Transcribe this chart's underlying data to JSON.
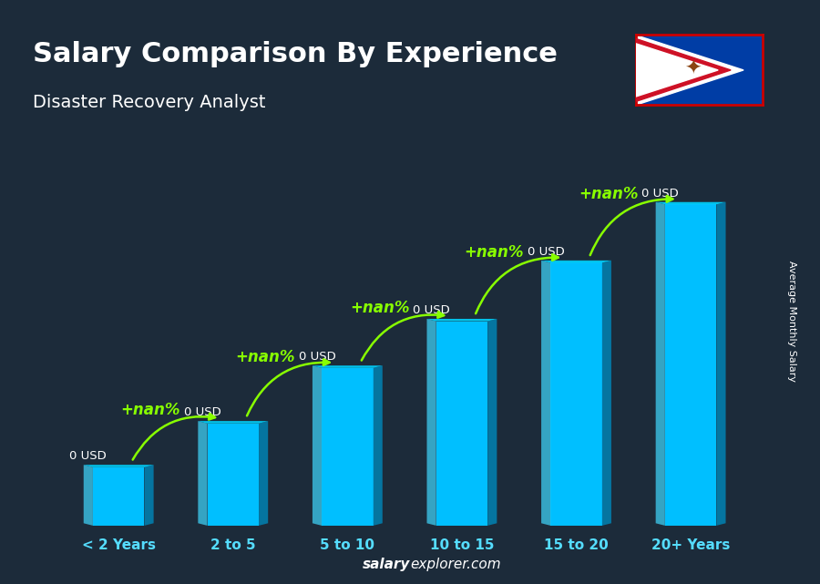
{
  "title": "Salary Comparison By Experience",
  "subtitle": "Disaster Recovery Analyst",
  "ylabel": "Average Monthly Salary",
  "watermark": "salaryexplorer.com",
  "watermark_bold": "salary",
  "categories": [
    "< 2 Years",
    "2 to 5",
    "5 to 10",
    "10 to 15",
    "15 to 20",
    "20+ Years"
  ],
  "heights": [
    1.0,
    1.75,
    2.7,
    3.5,
    4.5,
    5.5
  ],
  "bar_color_face": "#00bfff",
  "bar_color_left": "#40d8ff",
  "bar_color_right": "#0088bb",
  "bar_color_top": "#00d4ff",
  "bar_labels": [
    "0 USD",
    "0 USD",
    "0 USD",
    "0 USD",
    "0 USD",
    "0 USD"
  ],
  "increase_labels": [
    "+nan%",
    "+nan%",
    "+nan%",
    "+nan%",
    "+nan%"
  ],
  "bg_color": "#1c2b3a",
  "title_color": "#ffffff",
  "subtitle_color": "#ffffff",
  "cat_label_color": "#55ddff",
  "increase_color": "#88ff00",
  "bar_width": 0.45,
  "ylim": 6.8
}
